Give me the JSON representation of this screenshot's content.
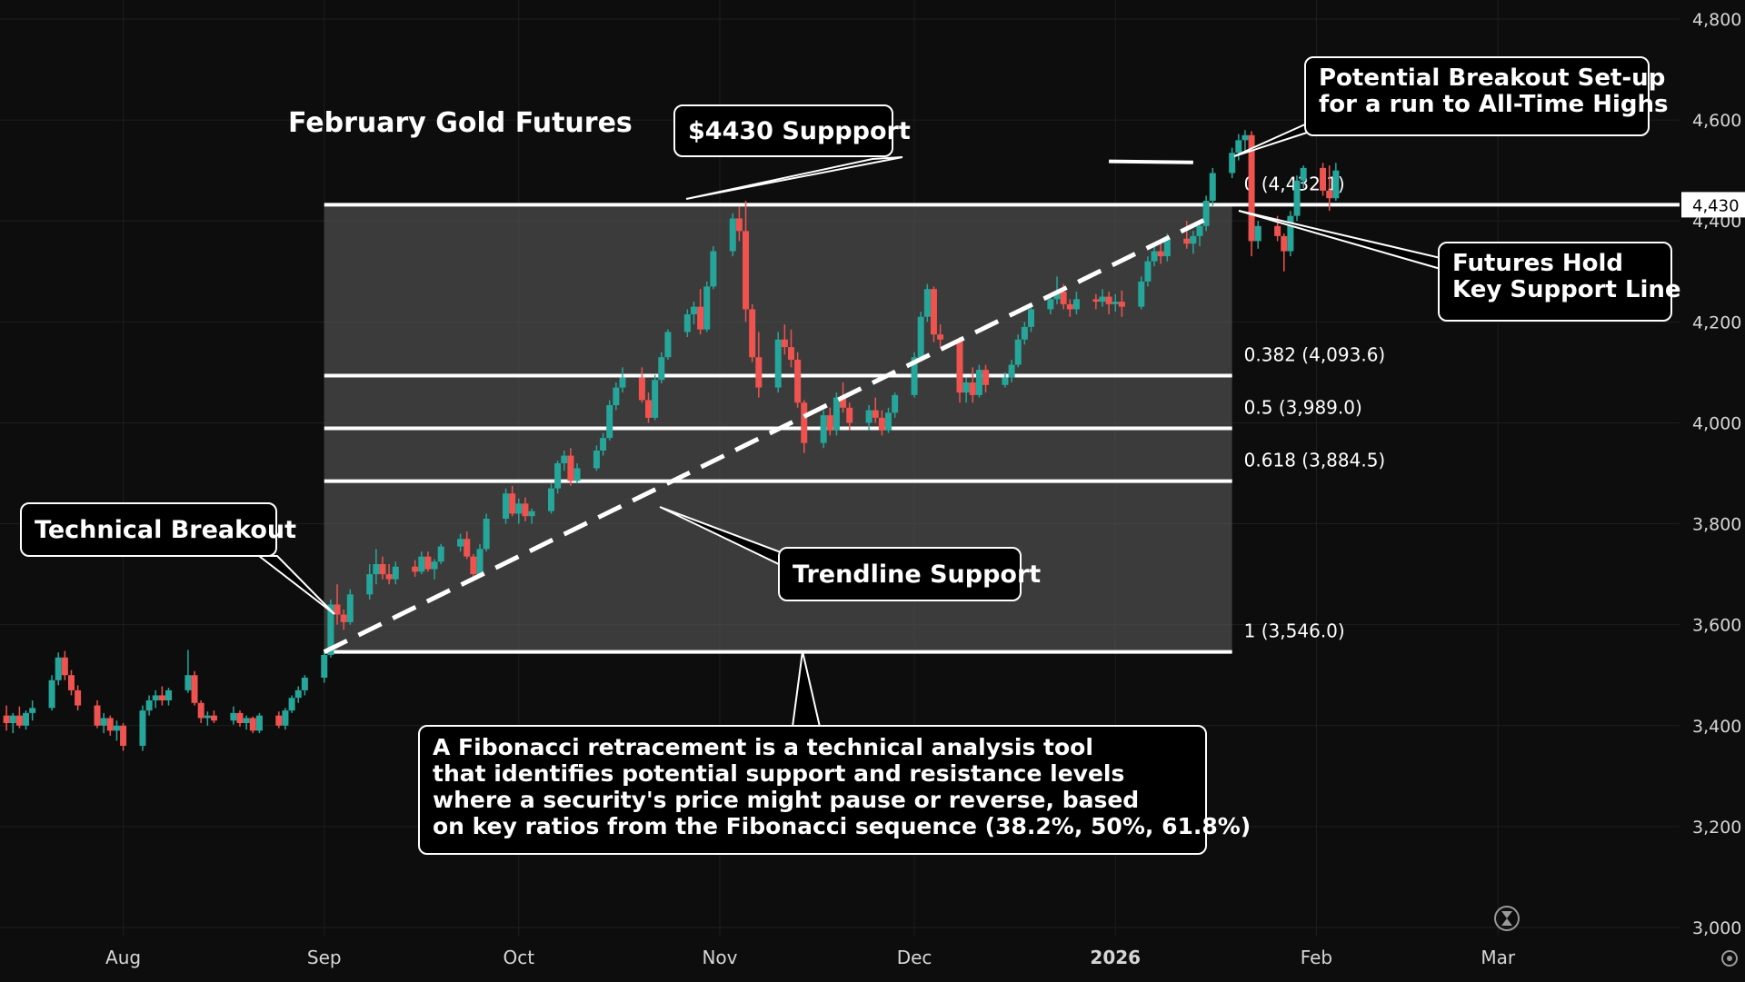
{
  "chart_data": {
    "type": "candlestick",
    "title": "February Gold Futures",
    "y_axis": {
      "ticks": [
        "3,000",
        "3,200",
        "3,400",
        "3,600",
        "3,800",
        "4,000",
        "4,200",
        "4,400",
        "4,600",
        "4,800"
      ],
      "tick_values": [
        3000,
        3200,
        3400,
        3600,
        3800,
        4000,
        4200,
        4400,
        4600,
        4800
      ],
      "range": [
        3000,
        4800
      ],
      "position": "right"
    },
    "x_axis": {
      "ticks": [
        "Aug",
        "Sep",
        "Oct",
        "Nov",
        "Dec",
        "2026",
        "Feb",
        "Mar"
      ],
      "tick_dates": [
        "2025-08-01",
        "2025-09-01",
        "2025-10-01",
        "2025-11-01",
        "2025-12-01",
        "2026-01-01",
        "2026-02-01",
        "2026-03-01"
      ],
      "range": [
        "2025-07-13",
        "2026-03-29"
      ]
    },
    "price_label": "4,430",
    "fibonacci": {
      "start_date": "2025-09-01",
      "end_date": "2026-01-19",
      "levels": [
        {
          "ratio": 0,
          "price": 4432.1,
          "label": "0 (4,432.1)"
        },
        {
          "ratio": 0.382,
          "price": 4093.6,
          "label": "0.382 (4,093.6)"
        },
        {
          "ratio": 0.5,
          "price": 3989.0,
          "label": "0.5 (3,989.0)"
        },
        {
          "ratio": 0.618,
          "price": 3884.5,
          "label": "0.618 (3,884.5)"
        },
        {
          "ratio": 1,
          "price": 3546.0,
          "label": "1 (3,546.0)"
        }
      ]
    },
    "trendline": {
      "from": {
        "date": "2025-09-01",
        "price": 3546
      },
      "to": {
        "date": "2026-01-16",
        "price": 4410
      }
    },
    "resistance_line": {
      "from": {
        "date": "2025-12-31",
        "price": 4518
      },
      "to": {
        "date": "2026-01-13",
        "price": 4516
      }
    },
    "callouts": {
      "support": "$4430 Suppport",
      "breakout_setup": [
        "Potential Breakout Set-up",
        "for a run to All-Time Highs"
      ],
      "hold_support": [
        "Futures Hold",
        "Key Support Line"
      ],
      "technical_breakout": "Technical Breakout",
      "trendline_support": "Trendline Support",
      "fibonacci_note": [
        "A Fibonacci retracement is a technical analysis tool",
        "that identifies potential support and resistance levels",
        "where a security's price might pause or reverse, based",
        "on key ratios from the Fibonacci sequence (38.2%, 50%, 61.8%)"
      ]
    },
    "candles": [
      [
        "2025-07-14",
        3420,
        3440,
        3390,
        3405
      ],
      [
        "2025-07-15",
        3405,
        3425,
        3385,
        3420
      ],
      [
        "2025-07-16",
        3420,
        3438,
        3395,
        3400
      ],
      [
        "2025-07-17",
        3400,
        3430,
        3392,
        3425
      ],
      [
        "2025-07-18",
        3425,
        3450,
        3410,
        3435
      ],
      [
        "2025-07-21",
        3435,
        3500,
        3430,
        3490
      ],
      [
        "2025-07-22",
        3490,
        3545,
        3480,
        3535
      ],
      [
        "2025-07-23",
        3535,
        3548,
        3490,
        3500
      ],
      [
        "2025-07-24",
        3500,
        3510,
        3460,
        3470
      ],
      [
        "2025-07-25",
        3470,
        3480,
        3430,
        3440
      ],
      [
        "2025-07-28",
        3440,
        3450,
        3395,
        3400
      ],
      [
        "2025-07-29",
        3400,
        3425,
        3385,
        3415
      ],
      [
        "2025-07-30",
        3415,
        3420,
        3380,
        3390
      ],
      [
        "2025-07-31",
        3390,
        3410,
        3370,
        3400
      ],
      [
        "2025-08-01",
        3400,
        3405,
        3350,
        3360
      ],
      [
        "2025-08-04",
        3360,
        3440,
        3350,
        3430
      ],
      [
        "2025-08-05",
        3430,
        3460,
        3420,
        3450
      ],
      [
        "2025-08-06",
        3450,
        3470,
        3435,
        3460
      ],
      [
        "2025-08-07",
        3460,
        3478,
        3440,
        3450
      ],
      [
        "2025-08-08",
        3450,
        3475,
        3440,
        3470
      ],
      [
        "2025-08-11",
        3470,
        3550,
        3465,
        3500
      ],
      [
        "2025-08-12",
        3500,
        3508,
        3440,
        3445
      ],
      [
        "2025-08-13",
        3445,
        3450,
        3405,
        3415
      ],
      [
        "2025-08-14",
        3415,
        3428,
        3400,
        3420
      ],
      [
        "2025-08-15",
        3420,
        3430,
        3405,
        3410
      ],
      [
        "2025-08-18",
        3410,
        3438,
        3402,
        3425
      ],
      [
        "2025-08-19",
        3425,
        3430,
        3398,
        3405
      ],
      [
        "2025-08-20",
        3405,
        3420,
        3392,
        3415
      ],
      [
        "2025-08-21",
        3415,
        3418,
        3385,
        3390
      ],
      [
        "2025-08-22",
        3390,
        3425,
        3385,
        3420
      ],
      [
        "2025-08-25",
        3420,
        3428,
        3395,
        3400
      ],
      [
        "2025-08-26",
        3400,
        3435,
        3392,
        3430
      ],
      [
        "2025-08-27",
        3430,
        3460,
        3425,
        3455
      ],
      [
        "2025-08-28",
        3455,
        3478,
        3445,
        3470
      ],
      [
        "2025-08-29",
        3470,
        3500,
        3460,
        3495
      ],
      [
        "2025-09-01",
        3495,
        3550,
        3485,
        3540
      ],
      [
        "2025-09-02",
        3540,
        3650,
        3535,
        3640
      ],
      [
        "2025-09-03",
        3640,
        3680,
        3600,
        3620
      ],
      [
        "2025-09-04",
        3620,
        3630,
        3590,
        3605
      ],
      [
        "2025-09-05",
        3605,
        3670,
        3600,
        3660
      ],
      [
        "2025-09-08",
        3660,
        3720,
        3650,
        3700
      ],
      [
        "2025-09-09",
        3700,
        3750,
        3680,
        3720
      ],
      [
        "2025-09-10",
        3720,
        3735,
        3690,
        3700
      ],
      [
        "2025-09-11",
        3700,
        3720,
        3680,
        3690
      ],
      [
        "2025-09-12",
        3690,
        3725,
        3680,
        3715
      ],
      [
        "2025-09-15",
        3715,
        3728,
        3695,
        3705
      ],
      [
        "2025-09-16",
        3705,
        3745,
        3700,
        3735
      ],
      [
        "2025-09-17",
        3735,
        3745,
        3705,
        3710
      ],
      [
        "2025-09-18",
        3710,
        3730,
        3690,
        3725
      ],
      [
        "2025-09-19",
        3725,
        3760,
        3720,
        3755
      ],
      [
        "2025-09-22",
        3755,
        3780,
        3745,
        3770
      ],
      [
        "2025-09-23",
        3770,
        3785,
        3730,
        3735
      ],
      [
        "2025-09-24",
        3735,
        3740,
        3690,
        3700
      ],
      [
        "2025-09-25",
        3700,
        3760,
        3695,
        3750
      ],
      [
        "2025-09-26",
        3750,
        3820,
        3745,
        3810
      ],
      [
        "2025-09-29",
        3810,
        3870,
        3800,
        3860
      ],
      [
        "2025-09-30",
        3860,
        3875,
        3815,
        3820
      ],
      [
        "2025-10-01",
        3820,
        3850,
        3800,
        3840
      ],
      [
        "2025-10-02",
        3840,
        3852,
        3805,
        3815
      ],
      [
        "2025-10-03",
        3815,
        3830,
        3800,
        3825
      ],
      [
        "2025-10-06",
        3825,
        3880,
        3820,
        3870
      ],
      [
        "2025-10-07",
        3870,
        3925,
        3860,
        3920
      ],
      [
        "2025-10-08",
        3920,
        3945,
        3905,
        3935
      ],
      [
        "2025-10-09",
        3935,
        3950,
        3875,
        3885
      ],
      [
        "2025-10-10",
        3885,
        3920,
        3880,
        3910
      ],
      [
        "2025-10-13",
        3910,
        3955,
        3905,
        3945
      ],
      [
        "2025-10-14",
        3945,
        3980,
        3935,
        3970
      ],
      [
        "2025-10-15",
        3970,
        4045,
        3965,
        4035
      ],
      [
        "2025-10-16",
        4035,
        4080,
        4025,
        4070
      ],
      [
        "2025-10-17",
        4070,
        4110,
        4060,
        4090
      ],
      [
        "2025-10-20",
        4090,
        4110,
        4040,
        4045
      ],
      [
        "2025-10-21",
        4045,
        4060,
        4000,
        4010
      ],
      [
        "2025-10-22",
        4010,
        4095,
        4005,
        4085
      ],
      [
        "2025-10-23",
        4085,
        4140,
        4078,
        4130
      ],
      [
        "2025-10-24",
        4130,
        4185,
        4125,
        4180
      ],
      [
        "2025-10-27",
        4180,
        4225,
        4170,
        4215
      ],
      [
        "2025-10-28",
        4215,
        4240,
        4195,
        4230
      ],
      [
        "2025-10-29",
        4230,
        4265,
        4175,
        4185
      ],
      [
        "2025-10-30",
        4185,
        4280,
        4180,
        4270
      ],
      [
        "2025-10-31",
        4270,
        4350,
        4265,
        4340
      ],
      [
        "2025-11-03",
        4340,
        4415,
        4330,
        4405
      ],
      [
        "2025-11-04",
        4405,
        4428,
        4360,
        4380
      ],
      [
        "2025-11-05",
        4380,
        4440,
        4200,
        4225
      ],
      [
        "2025-11-06",
        4225,
        4235,
        4120,
        4130
      ],
      [
        "2025-11-07",
        4130,
        4180,
        4050,
        4070
      ],
      [
        "2025-11-10",
        4070,
        4180,
        4060,
        4165
      ],
      [
        "2025-11-11",
        4165,
        4195,
        4135,
        4150
      ],
      [
        "2025-11-12",
        4150,
        4185,
        4110,
        4125
      ],
      [
        "2025-11-13",
        4125,
        4140,
        4030,
        4040
      ],
      [
        "2025-11-14",
        4040,
        4045,
        3940,
        3960
      ],
      [
        "2025-11-17",
        3960,
        4025,
        3950,
        4015
      ],
      [
        "2025-11-18",
        4015,
        4030,
        3975,
        3985
      ],
      [
        "2025-11-19",
        3985,
        4060,
        3975,
        4050
      ],
      [
        "2025-11-20",
        4050,
        4080,
        4020,
        4030
      ],
      [
        "2025-11-21",
        4030,
        4040,
        3985,
        4000
      ],
      [
        "2025-11-24",
        4000,
        4035,
        3985,
        4025
      ],
      [
        "2025-11-25",
        4025,
        4050,
        4000,
        4010
      ],
      [
        "2025-11-26",
        4010,
        4025,
        3975,
        3985
      ],
      [
        "2025-11-27",
        3985,
        4030,
        3980,
        4020
      ],
      [
        "2025-11-28",
        4020,
        4060,
        4010,
        4055
      ],
      [
        "2025-12-01",
        4055,
        4140,
        4050,
        4130
      ],
      [
        "2025-12-02",
        4130,
        4220,
        4125,
        4210
      ],
      [
        "2025-12-03",
        4210,
        4275,
        4200,
        4265
      ],
      [
        "2025-12-04",
        4265,
        4270,
        4160,
        4175
      ],
      [
        "2025-12-05",
        4175,
        4195,
        4150,
        4165
      ],
      [
        "2025-12-08",
        4165,
        4170,
        4040,
        4060
      ],
      [
        "2025-12-09",
        4060,
        4090,
        4040,
        4080
      ],
      [
        "2025-12-10",
        4080,
        4110,
        4040,
        4055
      ],
      [
        "2025-12-11",
        4055,
        4115,
        4050,
        4105
      ],
      [
        "2025-12-12",
        4105,
        4115,
        4060,
        4075
      ],
      [
        "2025-12-15",
        4075,
        4100,
        4070,
        4090
      ],
      [
        "2025-12-16",
        4090,
        4125,
        4080,
        4115
      ],
      [
        "2025-12-17",
        4115,
        4175,
        4110,
        4165
      ],
      [
        "2025-12-18",
        4165,
        4200,
        4155,
        4190
      ],
      [
        "2025-12-19",
        4190,
        4235,
        4180,
        4225
      ],
      [
        "2025-12-22",
        4225,
        4255,
        4215,
        4245
      ],
      [
        "2025-12-23",
        4245,
        4290,
        4235,
        4260
      ],
      [
        "2025-12-24",
        4260,
        4275,
        4225,
        4235
      ],
      [
        "2025-12-25",
        4235,
        4245,
        4210,
        4225
      ],
      [
        "2025-12-26",
        4225,
        4260,
        4215,
        4245
      ],
      [
        "2025-12-29",
        4245,
        4255,
        4225,
        4240
      ],
      [
        "2025-12-30",
        4240,
        4265,
        4230,
        4250
      ],
      [
        "2025-12-31",
        4250,
        4260,
        4215,
        4235
      ],
      [
        "2026-01-01",
        4235,
        4255,
        4220,
        4240
      ],
      [
        "2026-01-02",
        4240,
        4262,
        4210,
        4230
      ],
      [
        "2026-01-05",
        4230,
        4290,
        4225,
        4280
      ],
      [
        "2026-01-06",
        4280,
        4330,
        4270,
        4320
      ],
      [
        "2026-01-07",
        4320,
        4350,
        4310,
        4340
      ],
      [
        "2026-01-08",
        4340,
        4355,
        4315,
        4330
      ],
      [
        "2026-01-09",
        4330,
        4375,
        4320,
        4365
      ],
      [
        "2026-01-12",
        4365,
        4400,
        4345,
        4355
      ],
      [
        "2026-01-13",
        4355,
        4380,
        4335,
        4370
      ],
      [
        "2026-01-14",
        4370,
        4400,
        4350,
        4390
      ],
      [
        "2026-01-15",
        4390,
        4450,
        4380,
        4440
      ],
      [
        "2026-01-16",
        4440,
        4505,
        4430,
        4495
      ],
      [
        "2026-01-19",
        4495,
        4545,
        4485,
        4535
      ],
      [
        "2026-01-20",
        4535,
        4572,
        4520,
        4560
      ],
      [
        "2026-01-21",
        4560,
        4580,
        4540,
        4570
      ],
      [
        "2026-01-22",
        4570,
        4578,
        4330,
        4360
      ],
      [
        "2026-01-23",
        4360,
        4400,
        4345,
        4390
      ],
      [
        "2026-01-26",
        4390,
        4410,
        4360,
        4370
      ],
      [
        "2026-01-27",
        4370,
        4375,
        4300,
        4340
      ],
      [
        "2026-01-28",
        4340,
        4420,
        4330,
        4410
      ],
      [
        "2026-01-29",
        4410,
        4490,
        4400,
        4480
      ],
      [
        "2026-01-30",
        4480,
        4510,
        4465,
        4505
      ],
      [
        "2026-02-02",
        4505,
        4515,
        4450,
        4460
      ],
      [
        "2026-02-03",
        4460,
        4510,
        4420,
        4445
      ],
      [
        "2026-02-04",
        4445,
        4515,
        4440,
        4500
      ]
    ]
  },
  "colors": {
    "up": "#26a69a",
    "down": "#ef5350",
    "background": "#0d0d0d",
    "fib_fill": "#5a5a5a"
  },
  "icons": {
    "replay": "hourglass-icon",
    "settings": "gear-icon"
  }
}
